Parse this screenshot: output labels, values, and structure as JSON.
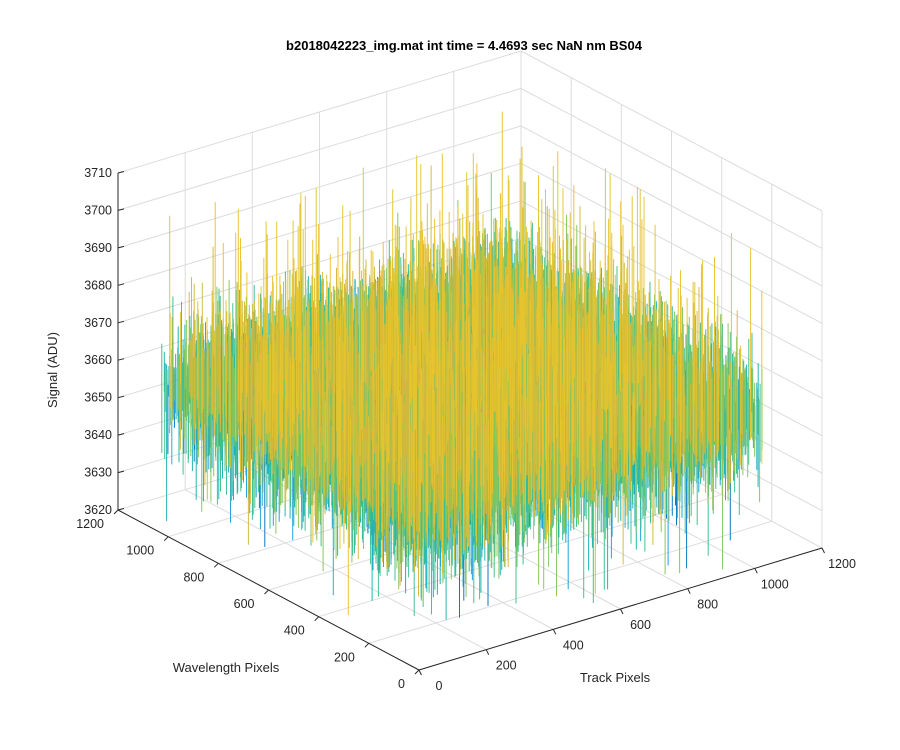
{
  "chart_data": {
    "type": "surface",
    "title": "b2018042223_img.mat int time = 4.4693 sec  NaN nm BS04",
    "xlabel": "Track Pixels",
    "ylabel": "Wavelength Pixels",
    "zlabel": "Signal (ADU)",
    "xlim": [
      0,
      1200
    ],
    "ylim": [
      0,
      1200
    ],
    "zlim": [
      3620,
      3710
    ],
    "x_ticks": [
      "0",
      "200",
      "400",
      "600",
      "800",
      "1000",
      "1200"
    ],
    "y_ticks": [
      "0",
      "200",
      "400",
      "600",
      "800",
      "1000",
      "1200"
    ],
    "z_ticks": [
      "3620",
      "3630",
      "3640",
      "3650",
      "3660",
      "3670",
      "3680",
      "3690",
      "3700",
      "3710"
    ],
    "surface": {
      "x_range": [
        0,
        1024
      ],
      "y_range": [
        0,
        1024
      ],
      "mean_signal": 3660,
      "noise_min": 3622,
      "noise_max": 3707
    },
    "grid": true,
    "colormap": [
      "#0072bd",
      "#1a9fd9",
      "#18b3b0",
      "#3bbf8c",
      "#86c55c",
      "#d4b83a",
      "#e6c42c"
    ]
  }
}
